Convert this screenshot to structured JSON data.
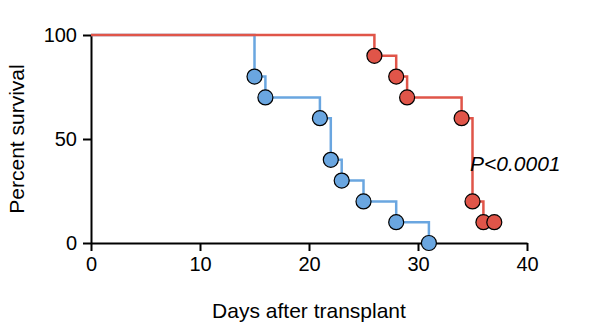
{
  "chart_data": {
    "type": "line",
    "line_style": "step",
    "marker": "circle",
    "x_label": "Days after transplant",
    "y_label": "Percent survival",
    "annotation": "P<0.0001",
    "xlim": [
      0,
      40
    ],
    "xticks": [
      0,
      10,
      20,
      30,
      40
    ],
    "ylim": [
      0,
      100
    ],
    "yticks": [
      0,
      50,
      100
    ],
    "grid": false,
    "series": [
      {
        "color": "#6aa6e0",
        "x": [
          0,
          15,
          16,
          21,
          22,
          23,
          25,
          28,
          31
        ],
        "values": [
          100,
          80,
          70,
          60,
          40,
          30,
          20,
          10,
          0
        ]
      },
      {
        "color": "#e05549",
        "x": [
          0,
          26,
          28,
          29,
          34,
          35,
          36,
          37
        ],
        "values": [
          100,
          90,
          80,
          70,
          60,
          20,
          10,
          10
        ]
      }
    ]
  }
}
